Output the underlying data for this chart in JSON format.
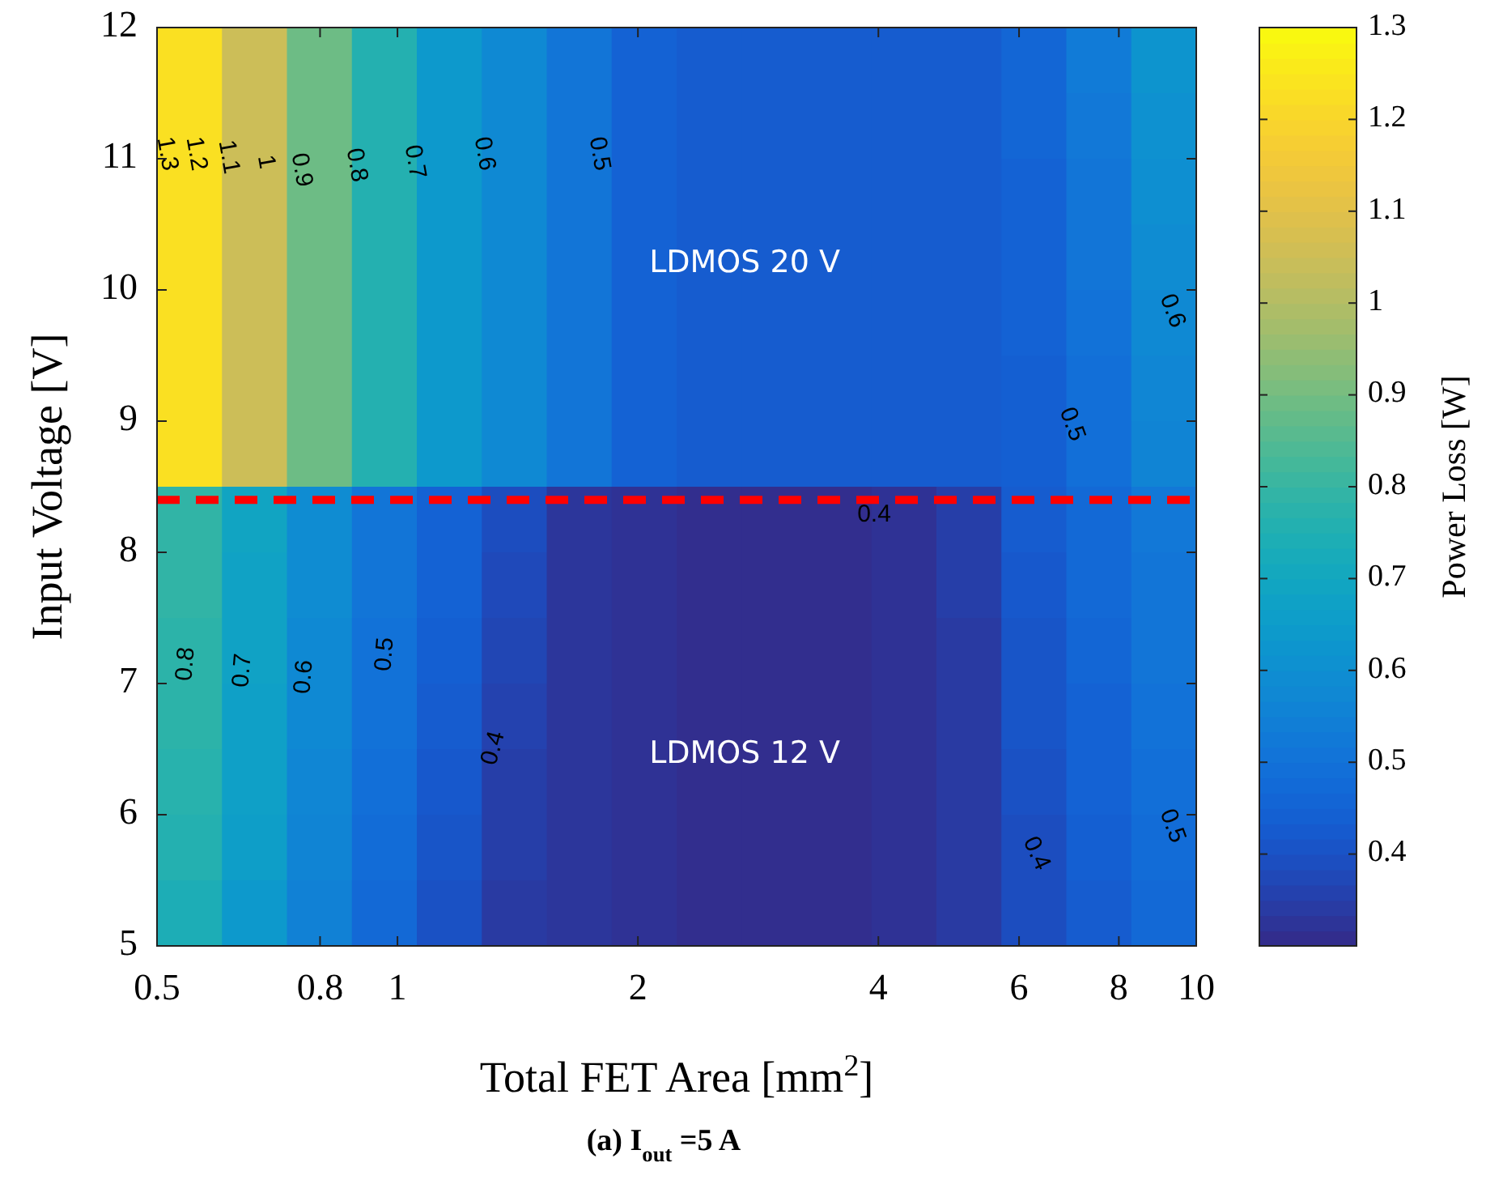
{
  "chart_data": {
    "type": "heatmap",
    "xlabel": "Total FET Area [mm$^{2}$]",
    "ylabel": "Input Voltage [V]",
    "clabel": "Power Loss [W]",
    "log": "x",
    "xlim": [
      0.5,
      10
    ],
    "ylim": [
      5,
      12
    ],
    "xticks": [
      0.5,
      0.8,
      1,
      2,
      4,
      6,
      8,
      10
    ],
    "yticks": [
      5,
      6,
      7,
      8,
      9,
      10,
      11,
      12
    ],
    "clim": [
      0.3,
      1.3
    ],
    "cticks": [
      0.4,
      0.5,
      0.6,
      0.7,
      0.8,
      0.9,
      1,
      1.1,
      1.2,
      1.3
    ],
    "cells": [
      [
        1.23,
        1.05,
        0.89,
        0.76,
        0.64,
        0.58,
        0.51,
        0.45,
        0.43,
        0.43,
        0.43,
        0.43,
        0.43,
        0.46,
        0.53,
        0.62
      ],
      [
        1.23,
        1.05,
        0.89,
        0.76,
        0.64,
        0.58,
        0.51,
        0.45,
        0.43,
        0.43,
        0.43,
        0.43,
        0.43,
        0.46,
        0.52,
        0.61
      ],
      [
        1.23,
        1.05,
        0.89,
        0.76,
        0.64,
        0.58,
        0.51,
        0.45,
        0.43,
        0.43,
        0.43,
        0.43,
        0.43,
        0.45,
        0.51,
        0.6
      ],
      [
        1.23,
        1.05,
        0.89,
        0.76,
        0.64,
        0.58,
        0.51,
        0.45,
        0.43,
        0.43,
        0.43,
        0.43,
        0.43,
        0.45,
        0.51,
        0.59
      ],
      [
        1.23,
        1.05,
        0.89,
        0.76,
        0.64,
        0.58,
        0.51,
        0.45,
        0.43,
        0.43,
        0.43,
        0.43,
        0.43,
        0.45,
        0.5,
        0.58
      ],
      [
        1.23,
        1.05,
        0.89,
        0.76,
        0.64,
        0.58,
        0.51,
        0.45,
        0.43,
        0.43,
        0.43,
        0.43,
        0.43,
        0.44,
        0.49,
        0.57
      ],
      [
        1.23,
        1.05,
        0.89,
        0.76,
        0.64,
        0.58,
        0.51,
        0.45,
        0.43,
        0.43,
        0.43,
        0.43,
        0.43,
        0.44,
        0.49,
        0.56
      ],
      [
        0.79,
        0.69,
        0.59,
        0.51,
        0.45,
        0.39,
        0.33,
        0.32,
        0.31,
        0.31,
        0.31,
        0.32,
        0.35,
        0.43,
        0.47,
        0.52
      ],
      [
        0.79,
        0.68,
        0.59,
        0.51,
        0.45,
        0.38,
        0.33,
        0.32,
        0.31,
        0.31,
        0.31,
        0.32,
        0.35,
        0.42,
        0.47,
        0.51
      ],
      [
        0.78,
        0.68,
        0.58,
        0.5,
        0.44,
        0.37,
        0.33,
        0.32,
        0.31,
        0.31,
        0.31,
        0.32,
        0.34,
        0.41,
        0.46,
        0.51
      ],
      [
        0.78,
        0.67,
        0.58,
        0.5,
        0.43,
        0.36,
        0.33,
        0.32,
        0.31,
        0.31,
        0.31,
        0.32,
        0.34,
        0.41,
        0.45,
        0.5
      ],
      [
        0.77,
        0.67,
        0.57,
        0.49,
        0.42,
        0.35,
        0.33,
        0.32,
        0.31,
        0.31,
        0.31,
        0.32,
        0.34,
        0.4,
        0.45,
        0.49
      ],
      [
        0.76,
        0.66,
        0.56,
        0.48,
        0.41,
        0.35,
        0.33,
        0.32,
        0.31,
        0.31,
        0.31,
        0.32,
        0.34,
        0.39,
        0.44,
        0.48
      ],
      [
        0.74,
        0.64,
        0.55,
        0.47,
        0.4,
        0.34,
        0.33,
        0.32,
        0.31,
        0.31,
        0.31,
        0.32,
        0.34,
        0.39,
        0.43,
        0.47
      ]
    ],
    "ref_lines": [
      {
        "axis": "y",
        "value": 8.4,
        "color": "#ff0000",
        "line_style": "dashed"
      }
    ],
    "annotations": [
      "1.3",
      "1.2",
      "1.1",
      "1",
      "0.9",
      "0.8",
      "0.7",
      "0.6",
      "0.5",
      "0.5",
      "0.6",
      "0.4",
      "0.8",
      "0.7",
      "0.6",
      "0.5",
      "0.4",
      "0.4",
      "0.5",
      "LDMOS 20 V",
      "LDMOS 12 V",
      "(a) I$_{out}$ =5 A"
    ]
  }
}
